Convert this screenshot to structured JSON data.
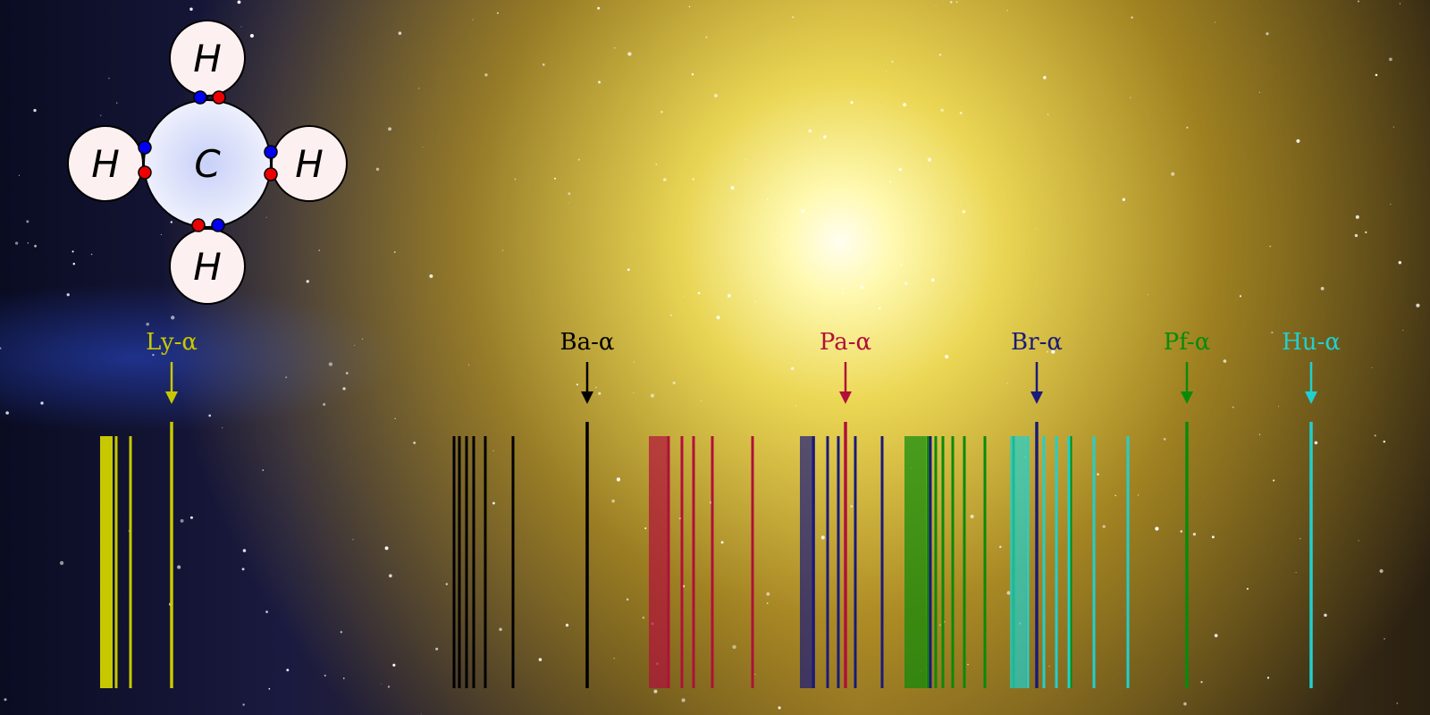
{
  "molecule": {
    "center": "C",
    "atoms": [
      "H",
      "H",
      "H",
      "H"
    ],
    "electron_colors": {
      "a": "#0000ee",
      "b": "#ee0000"
    }
  },
  "series": [
    {
      "label": "Ly-α",
      "color": "#c8c800"
    },
    {
      "label": "Ba-α",
      "color": "#000000"
    },
    {
      "label": "Pa-α",
      "color": "#b0103a"
    },
    {
      "label": "Br-α",
      "color": "#1a1a7a"
    },
    {
      "label": "Pf-α",
      "color": "#0a8a0a"
    },
    {
      "label": "Hu-α",
      "color": "#20d0d0"
    }
  ]
}
